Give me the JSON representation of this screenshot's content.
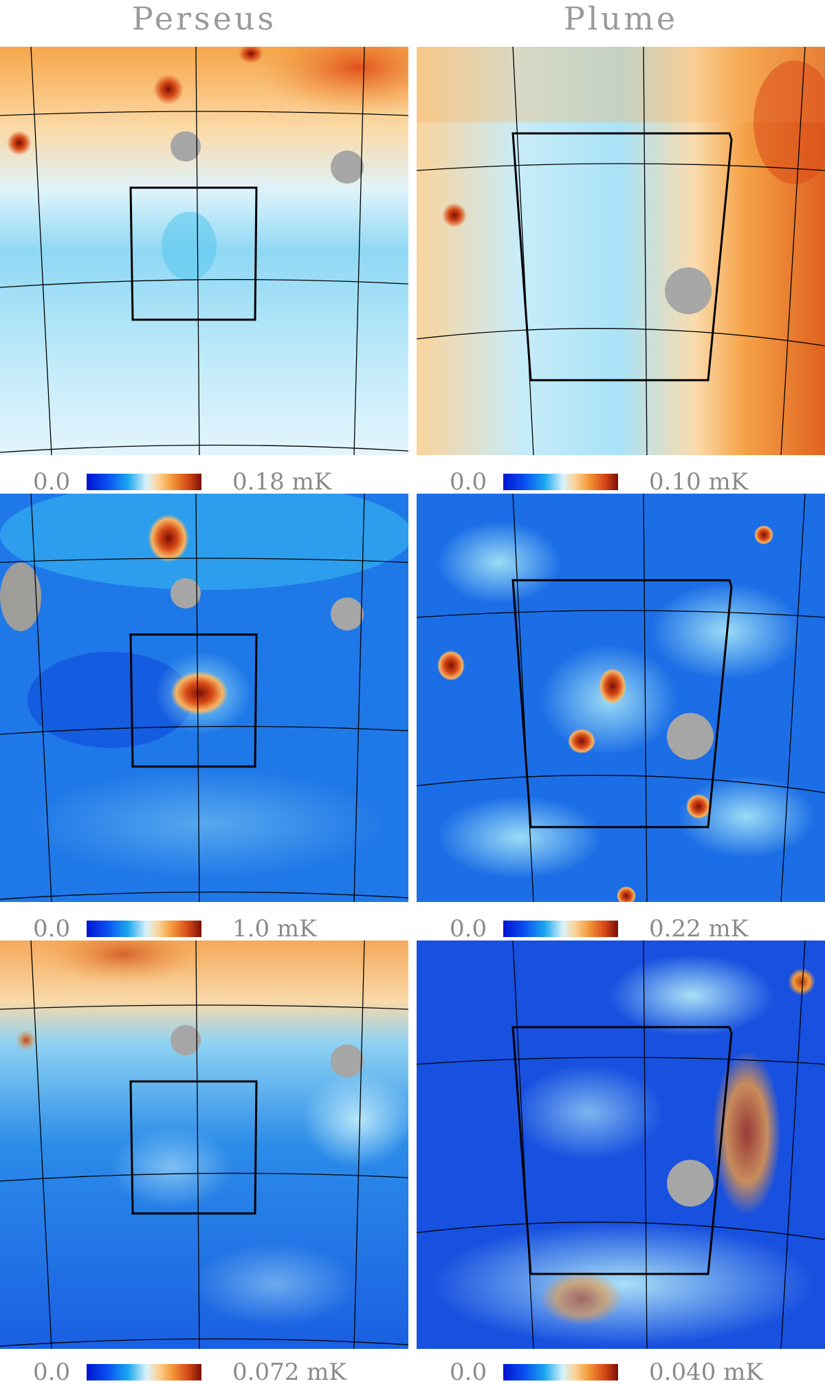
{
  "columns": [
    {
      "title": "Perseus"
    },
    {
      "title": "Plume"
    }
  ],
  "panels": [
    {
      "id": "perseus-1",
      "region": "Perseus",
      "row": 1,
      "scale": {
        "min": "0.0",
        "max": "0.18 mK"
      }
    },
    {
      "id": "plume-1",
      "region": "Plume",
      "row": 1,
      "scale": {
        "min": "0.0",
        "max": "0.10 mK"
      }
    },
    {
      "id": "perseus-2",
      "region": "Perseus",
      "row": 2,
      "scale": {
        "min": "0.0",
        "max": "1.0 mK"
      }
    },
    {
      "id": "plume-2",
      "region": "Plume",
      "row": 2,
      "scale": {
        "min": "0.0",
        "max": "0.22 mK"
      }
    },
    {
      "id": "perseus-3",
      "region": "Perseus",
      "row": 3,
      "scale": {
        "min": "0.0",
        "max": "0.072 mK"
      }
    },
    {
      "id": "plume-3",
      "region": "Plume",
      "row": 3,
      "scale": {
        "min": "0.0",
        "max": "0.040 mK"
      }
    }
  ],
  "colors": {
    "colormap": [
      "#0014d2",
      "#0a4ef0",
      "#1aa6ee",
      "#d9f2fb",
      "#fbd59b",
      "#f49b3c",
      "#d84a16",
      "#7a0f07"
    ],
    "mask": "#a6a6a6",
    "grid": "#000000",
    "label": "#8a8a8a"
  }
}
